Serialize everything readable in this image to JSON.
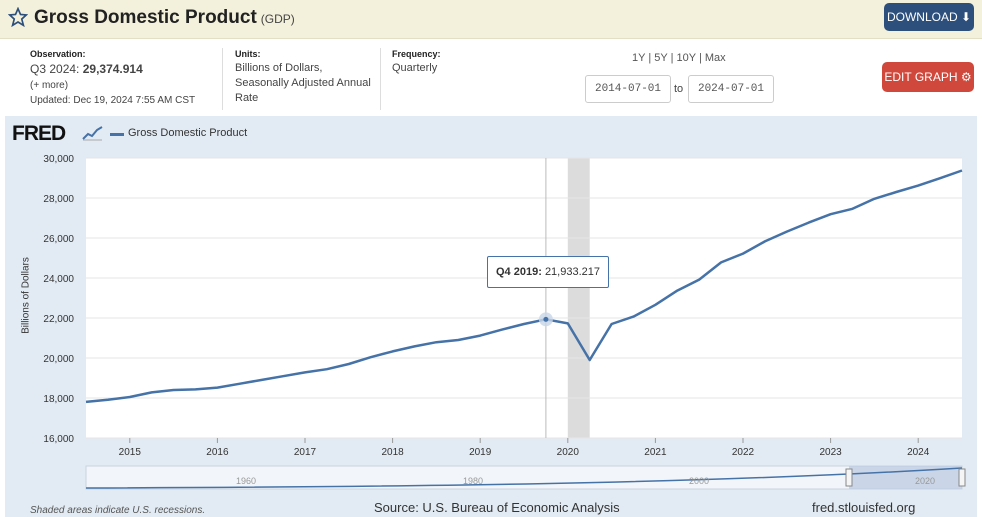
{
  "header": {
    "title": "Gross Domestic Product",
    "series_code": "(GDP)",
    "download_label": "DOWNLOAD ⬇"
  },
  "meta": {
    "observation_label": "Observation:",
    "observation_period": "Q3 2024:",
    "observation_value": "29,374.914",
    "more_link": "(+ more)",
    "updated": "Updated: Dec 19, 2024 7:55 AM CST",
    "units_label": "Units:",
    "units_lines": [
      "Billions of Dollars,",
      "Seasonally Adjusted Annual",
      "Rate"
    ],
    "frequency_label": "Frequency:",
    "frequency": "Quarterly"
  },
  "controls": {
    "range_1y": "1Y",
    "range_5y": "5Y",
    "range_10y": "10Y",
    "range_max": "Max",
    "separator": "|",
    "start_date": "2014-07-01",
    "to_label": "to",
    "end_date": "2024-07-01",
    "edit_label": "EDIT GRAPH ⚙"
  },
  "chart_data": {
    "type": "line",
    "ylabel": "Billions of Dollars",
    "ylim": [
      16000,
      30000
    ],
    "yticks": [
      "16,000",
      "18,000",
      "20,000",
      "22,000",
      "24,000",
      "26,000",
      "28,000",
      "30,000"
    ],
    "yticks_values": [
      16000,
      18000,
      20000,
      22000,
      24000,
      26000,
      28000,
      30000
    ],
    "xlim": [
      2014.5,
      2024.5
    ],
    "xticks": [
      "2015",
      "2016",
      "2017",
      "2018",
      "2019",
      "2020",
      "2021",
      "2022",
      "2023",
      "2024"
    ],
    "grid": true,
    "legend_placement": "top-left",
    "series": [
      {
        "name": "Gross Domestic Product",
        "color": "#4572a7",
        "x": [
          2014.5,
          2014.75,
          2015.0,
          2015.25,
          2015.5,
          2015.75,
          2016.0,
          2016.25,
          2016.5,
          2016.75,
          2017.0,
          2017.25,
          2017.5,
          2017.75,
          2018.0,
          2018.25,
          2018.5,
          2018.75,
          2019.0,
          2019.25,
          2019.5,
          2019.75,
          2020.0,
          2020.25,
          2020.5,
          2020.75,
          2021.0,
          2021.25,
          2021.5,
          2021.75,
          2022.0,
          2022.25,
          2022.5,
          2022.75,
          2023.0,
          2023.25,
          2023.5,
          2023.75,
          2024.0,
          2024.25,
          2024.5
        ],
        "y": [
          17805,
          17910,
          18050,
          18280,
          18400,
          18430,
          18520,
          18710,
          18900,
          19090,
          19280,
          19440,
          19700,
          20040,
          20330,
          20580,
          20790,
          20900,
          21120,
          21420,
          21700,
          21933,
          21730,
          19900,
          21700,
          22070,
          22660,
          23370,
          23920,
          24780,
          25220,
          25830,
          26320,
          26770,
          27190,
          27460,
          27960,
          28300,
          28620,
          28990,
          29375
        ]
      }
    ],
    "recessions": [
      [
        2020.0,
        2020.25
      ]
    ],
    "tooltip": {
      "period": "Q4 2019:",
      "value": "21,933.217",
      "x": 2019.75,
      "y": 21933
    },
    "navigator_labels": [
      "1960",
      "1980",
      "2000",
      "2020"
    ]
  },
  "footer": {
    "recession_note": "Shaded areas indicate U.S. recessions.",
    "source": "Source: U.S. Bureau of Economic Analysis",
    "url": "fred.stlouisfed.org"
  },
  "colors": {
    "line": "#4572a7",
    "plot_bg": "#ffffff",
    "frame_bg": "#e2ebf3",
    "recession": "#dcdcdc",
    "download_btn": "#2d4f7c",
    "edit_btn": "#d0483b"
  },
  "brand": {
    "logo": "FRED"
  }
}
